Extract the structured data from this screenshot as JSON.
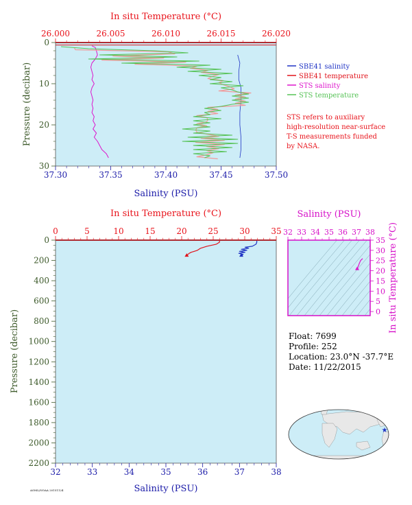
{
  "colors": {
    "plot_bg": "#cdedf7",
    "temp_axis": "#e8121a",
    "sal_axis": "#1a1aa8",
    "pressure_axis": "#3d5a2a",
    "ts_axis": "#d60fc8",
    "sbe_salinity": "#1f33c4",
    "sbe_temperature": "#e0121a",
    "sts_salinity": "#dd14cc",
    "sts_temperature": "#55c255",
    "sts_temperature_light": "#f09a9a",
    "land": "#e8e8e8",
    "ocean": "#cdedf7"
  },
  "chart_data": [
    {
      "type": "line",
      "top_axis_label": "In situ Temperature (°C)",
      "bottom_axis_label": "Salinity (PSU)",
      "left_axis_label": "Pressure (decibar)",
      "top_ticks": [
        "26.000",
        "26.005",
        "26.010",
        "26.015",
        "26.020"
      ],
      "bottom_ticks": [
        "37.30",
        "37.35",
        "37.40",
        "37.45",
        "37.50"
      ],
      "left_ticks": [
        "0",
        "10",
        "20",
        "30"
      ],
      "temperature_range": [
        26.0,
        26.02
      ],
      "salinity_range": [
        37.3,
        37.5
      ],
      "pressure_range": [
        0,
        30
      ],
      "grid": false,
      "legend_position": "right",
      "legend": [
        {
          "label": "SBE41 salinity",
          "color_key": "sbe_salinity"
        },
        {
          "label": "SBE41 temperature",
          "color_key": "sbe_temperature"
        },
        {
          "label": "STS salinity",
          "color_key": "sts_salinity"
        },
        {
          "label": "STS temperature",
          "color_key": "sts_temperature"
        }
      ],
      "note": [
        "STS refers to auxiliary",
        "high-resolution near-surface",
        "T-S measurements funded",
        "by NASA."
      ],
      "series": [
        {
          "name": "SBE41 salinity",
          "axis": "salinity",
          "pressure": [
            3,
            5,
            7,
            9,
            11,
            14,
            17,
            20,
            23,
            26,
            28
          ],
          "values": [
            37.465,
            37.467,
            37.466,
            37.466,
            37.468,
            37.468,
            37.467,
            37.467,
            37.468,
            37.468,
            37.467
          ]
        },
        {
          "name": "SBE41 temperature",
          "axis": "temperature",
          "pressure": [
            0.6,
            0.6
          ],
          "values": [
            26.0,
            26.02
          ]
        },
        {
          "name": "STS salinity",
          "axis": "salinity",
          "pressure": [
            0.8,
            1.2,
            2,
            3,
            4,
            5,
            6,
            7,
            8,
            9,
            10,
            11,
            12,
            13,
            14,
            15,
            16,
            17,
            18,
            19,
            20,
            21,
            22,
            23,
            24,
            25,
            26,
            27,
            28
          ],
          "values": [
            37.333,
            37.336,
            37.337,
            37.338,
            37.336,
            37.333,
            37.332,
            37.333,
            37.334,
            37.333,
            37.335,
            37.333,
            37.332,
            37.333,
            37.334,
            37.333,
            37.334,
            37.333,
            37.335,
            37.334,
            37.336,
            37.334,
            37.337,
            37.335,
            37.338,
            37.34,
            37.342,
            37.346,
            37.348
          ]
        },
        {
          "name": "STS temperature",
          "axis": "temperature",
          "pressure": [
            1,
            1.5,
            2,
            2.5,
            3,
            3.5,
            4,
            4.5,
            5,
            5.5,
            6,
            6.5,
            7,
            7.5,
            8,
            8.5,
            9,
            9.5,
            10,
            10.5,
            11,
            11.5,
            12,
            12.5,
            13,
            13.5,
            14,
            14.5,
            15,
            15.5,
            16,
            16.5,
            17,
            17.5,
            18,
            18.5,
            19,
            19.5,
            20,
            20.5,
            21,
            21.5,
            22,
            22.5,
            23,
            23.5,
            24,
            24.5,
            25,
            25.5,
            26,
            26.5,
            27,
            27.5,
            28
          ],
          "values": [
            26.0005,
            26.003,
            26.009,
            26.012,
            26.004,
            26.011,
            26.003,
            26.013,
            26.006,
            26.014,
            26.011,
            26.015,
            26.012,
            26.016,
            26.013,
            26.015,
            26.014,
            26.016,
            26.014,
            26.017,
            26.015,
            26.016,
            26.0165,
            26.0175,
            26.016,
            26.0175,
            26.016,
            26.0175,
            26.016,
            26.015,
            26.0135,
            26.015,
            26.0135,
            26.014,
            26.0125,
            26.015,
            26.0125,
            26.014,
            26.0125,
            26.014,
            26.0115,
            26.014,
            26.0125,
            26.016,
            26.012,
            26.0165,
            26.0115,
            26.0165,
            26.0125,
            26.016,
            26.0125,
            26.0155,
            26.0125,
            26.014,
            26.0135
          ]
        }
      ]
    },
    {
      "type": "line",
      "top_axis_label": "In situ Temperature (°C)",
      "bottom_axis_label": "Salinity (PSU)",
      "left_axis_label": "Pressure (decibar)",
      "top_ticks": [
        "0",
        "5",
        "10",
        "15",
        "20",
        "25",
        "30",
        "35"
      ],
      "bottom_ticks": [
        "32",
        "33",
        "34",
        "35",
        "36",
        "37",
        "38"
      ],
      "left_ticks": [
        "0",
        "200",
        "400",
        "600",
        "800",
        "1000",
        "1200",
        "1400",
        "1600",
        "1800",
        "2000",
        "2200"
      ],
      "temperature_range": [
        0,
        35
      ],
      "salinity_range": [
        32,
        38
      ],
      "pressure_range": [
        0,
        2200
      ],
      "grid": false,
      "series": [
        {
          "name": "SBE41 temperature",
          "axis": "temperature",
          "pressure": [
            0,
            20,
            40,
            60,
            80,
            100,
            110,
            120,
            130,
            140,
            150
          ],
          "values": [
            26.0,
            26.0,
            25.5,
            24.0,
            23.0,
            22.5,
            22.0,
            21.5,
            21.2,
            21.0,
            20.8
          ]
        },
        {
          "name": "SBE41 salinity",
          "axis": "salinity",
          "pressure": [
            0,
            20,
            40,
            60,
            70,
            80,
            90,
            100,
            110,
            120,
            130,
            140,
            150
          ],
          "values": [
            37.47,
            37.47,
            37.45,
            37.35,
            37.15,
            37.25,
            37.05,
            37.2,
            37.0,
            37.15,
            36.98,
            37.1,
            37.05
          ]
        }
      ]
    },
    {
      "type": "line",
      "top_axis_label": "Salinity (PSU)",
      "right_axis_label": "In situ Temperature (°C)",
      "top_ticks": [
        "32",
        "33",
        "34",
        "35",
        "36",
        "37",
        "38"
      ],
      "right_ticks": [
        "0",
        "5",
        "10",
        "15",
        "20",
        "25",
        "30",
        "35"
      ],
      "salinity_range": [
        32,
        38
      ],
      "temperature_range": [
        -2,
        35
      ],
      "series": [
        {
          "name": "T-S",
          "x": [
            37.05,
            37.1,
            37.15,
            37.2,
            37.3,
            37.45
          ],
          "y": [
            21.0,
            21.8,
            22.5,
            23.5,
            25.0,
            26.0
          ]
        }
      ]
    }
  ],
  "info": {
    "float": "Float: 7699",
    "profile": "Profile: 252",
    "location": "Location: 23.0°N -37.7°E",
    "date": "Date: 11/22/2015"
  },
  "footer_code": "AOML/NOAA 20151124",
  "map": {
    "marker_lon": -37.7,
    "marker_lat": 23.0,
    "marker_color": "#1f33c4"
  }
}
